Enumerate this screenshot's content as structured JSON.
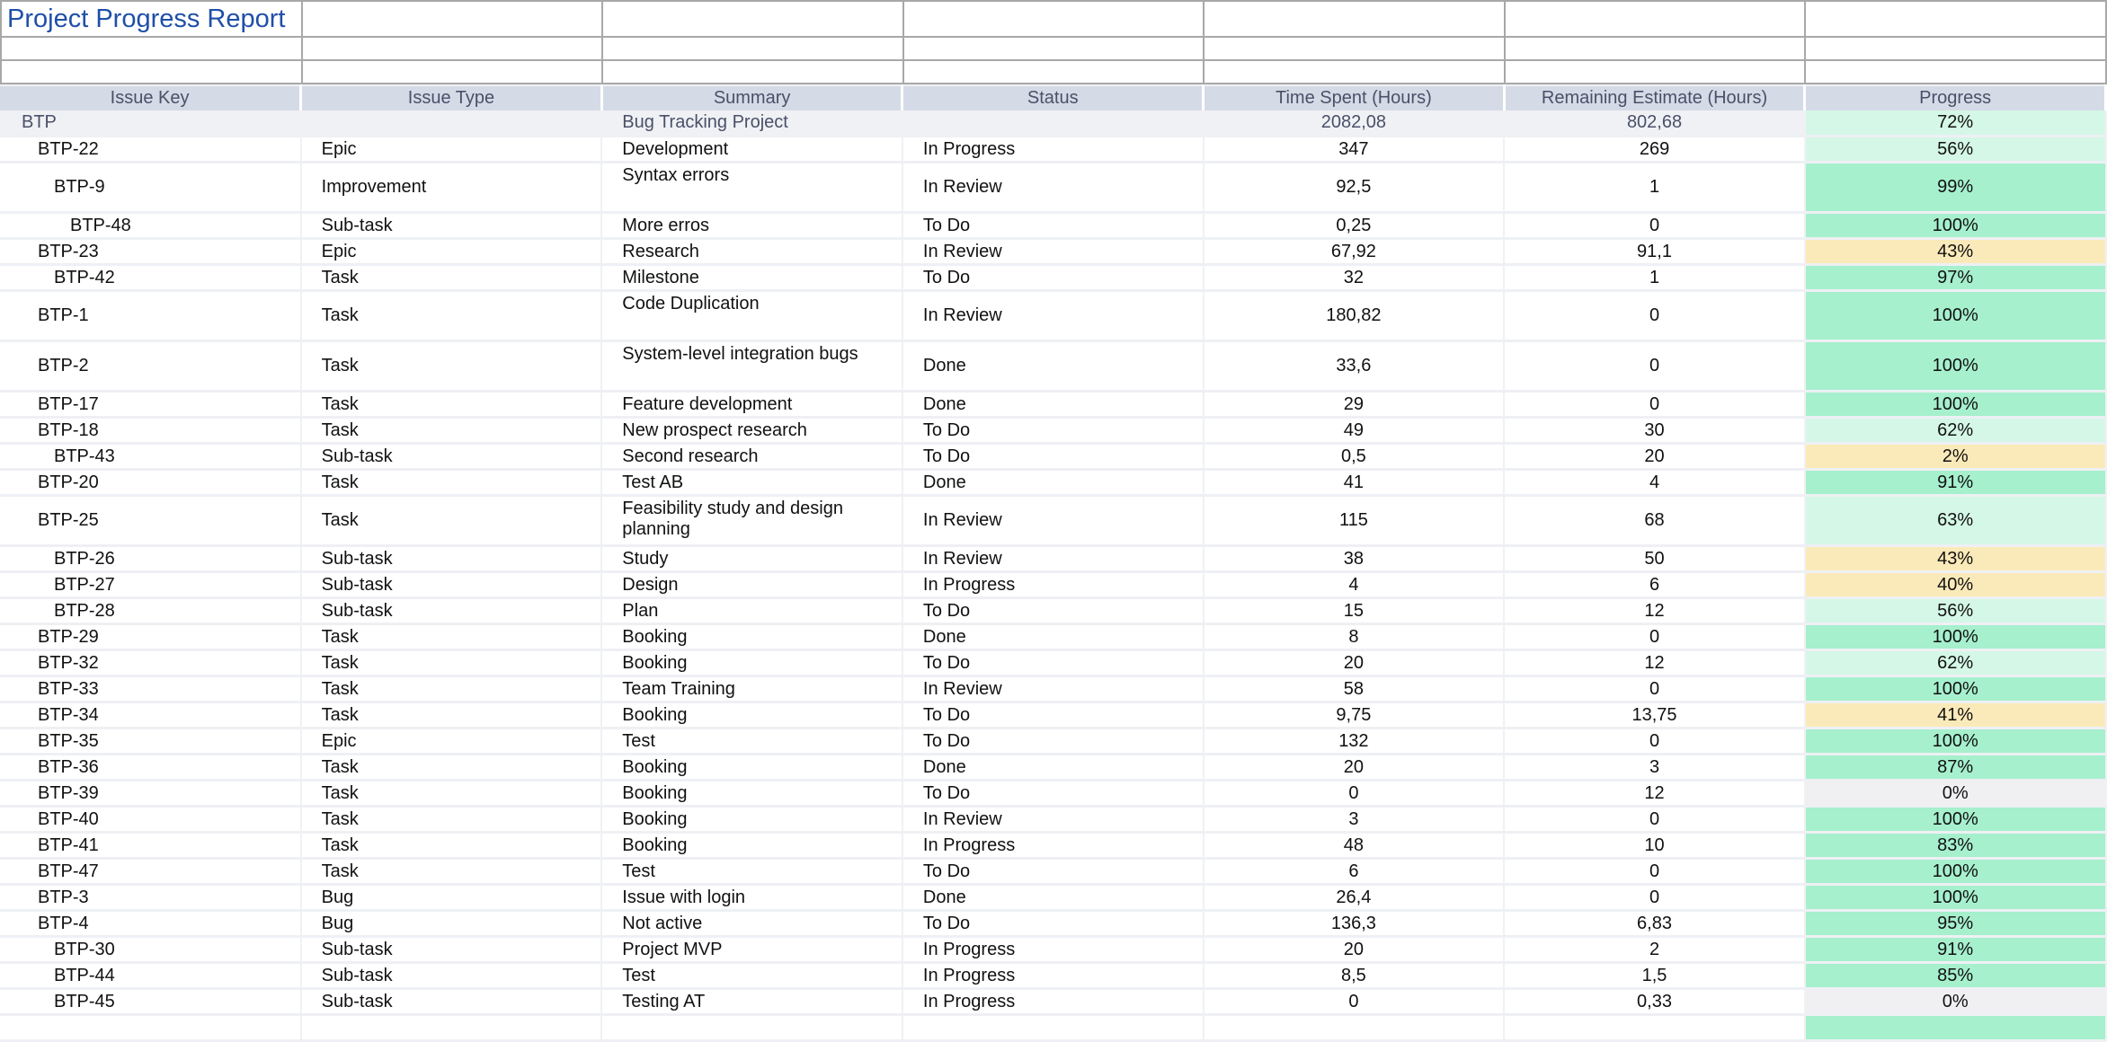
{
  "title": "Project Progress Report",
  "columns": [
    "Issue Key",
    "Issue Type",
    "Summary",
    "Status",
    "Time Spent (Hours)",
    "Remaining Estimate (Hours)",
    "Progress"
  ],
  "project": {
    "key": "BTP",
    "summary": "Bug Tracking Project",
    "time_spent": "2082,08",
    "remaining": "802,68",
    "progress": "72%"
  },
  "colors": {
    "header_bg": "#d5dbe6",
    "progress_high": "#a6f0cd",
    "progress_mid": "#d5f7e7",
    "progress_low": "#fbeab9",
    "progress_zero": "#f0f0f2",
    "title": "#1f4fa8"
  },
  "rows": [
    {
      "key": "BTP-22",
      "level": 1,
      "type": "Epic",
      "summary": "Development",
      "status": "In Progress",
      "time_spent": "347",
      "remaining": "269",
      "progress": "56%"
    },
    {
      "key": "BTP-9",
      "level": 2,
      "type": "Improvement",
      "summary": "Syntax errors",
      "status": "In Review",
      "time_spent": "92,5",
      "remaining": "1",
      "progress": "99%",
      "tall": true
    },
    {
      "key": "BTP-48",
      "level": 3,
      "type": "Sub-task",
      "summary": "More erros",
      "status": "To Do",
      "time_spent": "0,25",
      "remaining": "0",
      "progress": "100%"
    },
    {
      "key": "BTP-23",
      "level": 1,
      "type": "Epic",
      "summary": "Research",
      "status": "In Review",
      "time_spent": "67,92",
      "remaining": "91,1",
      "progress": "43%"
    },
    {
      "key": "BTP-42",
      "level": 2,
      "type": "Task",
      "summary": "Milestone",
      "status": "To Do",
      "time_spent": "32",
      "remaining": "1",
      "progress": "97%"
    },
    {
      "key": "BTP-1",
      "level": 1,
      "type": "Task",
      "summary": "Code Duplication",
      "status": "In Review",
      "time_spent": "180,82",
      "remaining": "0",
      "progress": "100%",
      "tall": true
    },
    {
      "key": "BTP-2",
      "level": 1,
      "type": "Task",
      "summary": "System-level integration bugs",
      "status": "Done",
      "time_spent": "33,6",
      "remaining": "0",
      "progress": "100%",
      "tall": true
    },
    {
      "key": "BTP-17",
      "level": 1,
      "type": "Task",
      "summary": "Feature development",
      "status": "Done",
      "time_spent": "29",
      "remaining": "0",
      "progress": "100%"
    },
    {
      "key": "BTP-18",
      "level": 1,
      "type": "Task",
      "summary": "New prospect research",
      "status": "To Do",
      "time_spent": "49",
      "remaining": "30",
      "progress": "62%"
    },
    {
      "key": "BTP-43",
      "level": 2,
      "type": "Sub-task",
      "summary": "Second research",
      "status": "To Do",
      "time_spent": "0,5",
      "remaining": "20",
      "progress": "2%"
    },
    {
      "key": "BTP-20",
      "level": 1,
      "type": "Task",
      "summary": "Test AB",
      "status": "Done",
      "time_spent": "41",
      "remaining": "4",
      "progress": "91%"
    },
    {
      "key": "BTP-25",
      "level": 1,
      "type": "Task",
      "summary": "Feasibility study and design planning",
      "status": "In Review",
      "time_spent": "115",
      "remaining": "68",
      "progress": "63%",
      "tall": true
    },
    {
      "key": "BTP-26",
      "level": 2,
      "type": "Sub-task",
      "summary": "Study",
      "status": "In Review",
      "time_spent": "38",
      "remaining": "50",
      "progress": "43%"
    },
    {
      "key": "BTP-27",
      "level": 2,
      "type": "Sub-task",
      "summary": "Design",
      "status": "In Progress",
      "time_spent": "4",
      "remaining": "6",
      "progress": "40%"
    },
    {
      "key": "BTP-28",
      "level": 2,
      "type": "Sub-task",
      "summary": "Plan",
      "status": "To Do",
      "time_spent": "15",
      "remaining": "12",
      "progress": "56%"
    },
    {
      "key": "BTP-29",
      "level": 1,
      "type": "Task",
      "summary": "Booking",
      "status": "Done",
      "time_spent": "8",
      "remaining": "0",
      "progress": "100%"
    },
    {
      "key": "BTP-32",
      "level": 1,
      "type": "Task",
      "summary": "Booking",
      "status": "To Do",
      "time_spent": "20",
      "remaining": "12",
      "progress": "62%"
    },
    {
      "key": "BTP-33",
      "level": 1,
      "type": "Task",
      "summary": "Team Training",
      "status": "In Review",
      "time_spent": "58",
      "remaining": "0",
      "progress": "100%"
    },
    {
      "key": "BTP-34",
      "level": 1,
      "type": "Task",
      "summary": "Booking",
      "status": "To Do",
      "time_spent": "9,75",
      "remaining": "13,75",
      "progress": "41%"
    },
    {
      "key": "BTP-35",
      "level": 1,
      "type": "Epic",
      "summary": "Test",
      "status": "To Do",
      "time_spent": "132",
      "remaining": "0",
      "progress": "100%"
    },
    {
      "key": "BTP-36",
      "level": 1,
      "type": "Task",
      "summary": "Booking",
      "status": "Done",
      "time_spent": "20",
      "remaining": "3",
      "progress": "87%"
    },
    {
      "key": "BTP-39",
      "level": 1,
      "type": "Task",
      "summary": "Booking",
      "status": "To Do",
      "time_spent": "0",
      "remaining": "12",
      "progress": "0%"
    },
    {
      "key": "BTP-40",
      "level": 1,
      "type": "Task",
      "summary": "Booking",
      "status": "In Review",
      "time_spent": "3",
      "remaining": "0",
      "progress": "100%"
    },
    {
      "key": "BTP-41",
      "level": 1,
      "type": "Task",
      "summary": "Booking",
      "status": "In Progress",
      "time_spent": "48",
      "remaining": "10",
      "progress": "83%"
    },
    {
      "key": "BTP-47",
      "level": 1,
      "type": "Task",
      "summary": "Test",
      "status": "To Do",
      "time_spent": "6",
      "remaining": "0",
      "progress": "100%"
    },
    {
      "key": "BTP-3",
      "level": 1,
      "type": "Bug",
      "summary": "Issue with login",
      "status": "Done",
      "time_spent": "26,4",
      "remaining": "0",
      "progress": "100%"
    },
    {
      "key": "BTP-4",
      "level": 1,
      "type": "Bug",
      "summary": "Not active",
      "status": "To Do",
      "time_spent": "136,3",
      "remaining": "6,83",
      "progress": "95%"
    },
    {
      "key": "BTP-30",
      "level": 2,
      "type": "Sub-task",
      "summary": "Project MVP",
      "status": "In Progress",
      "time_spent": "20",
      "remaining": "2",
      "progress": "91%"
    },
    {
      "key": "BTP-44",
      "level": 2,
      "type": "Sub-task",
      "summary": "Test",
      "status": "In Progress",
      "time_spent": "8,5",
      "remaining": "1,5",
      "progress": "85%"
    },
    {
      "key": "BTP-45",
      "level": 2,
      "type": "Sub-task",
      "summary": "Testing AT",
      "status": "In Progress",
      "time_spent": "0",
      "remaining": "0,33",
      "progress": "0%"
    }
  ]
}
